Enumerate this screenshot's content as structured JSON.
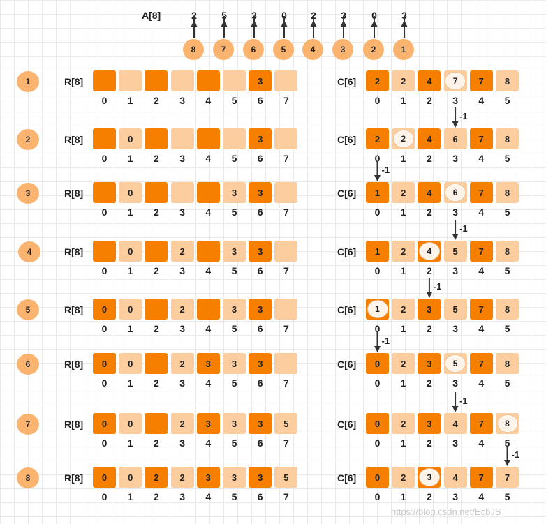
{
  "header": {
    "array_label": "A[8]",
    "array_values": [
      "2",
      "5",
      "3",
      "0",
      "2",
      "3",
      "0",
      "3"
    ],
    "order_labels": [
      "8",
      "7",
      "6",
      "5",
      "4",
      "3",
      "2",
      "1"
    ]
  },
  "r_indices": [
    "0",
    "1",
    "2",
    "3",
    "4",
    "5",
    "6",
    "7"
  ],
  "c_indices": [
    "0",
    "1",
    "2",
    "3",
    "4",
    "5"
  ],
  "steps": [
    {
      "num": "1",
      "r_label": "R[8]",
      "c_label": "C[6]",
      "r_cells": [
        {
          "t": "",
          "d": 1
        },
        {
          "t": "",
          "d": 0
        },
        {
          "t": "",
          "d": 1
        },
        {
          "t": "",
          "d": 0
        },
        {
          "t": "",
          "d": 1
        },
        {
          "t": "",
          "d": 0
        },
        {
          "t": "3",
          "d": 1
        },
        {
          "t": "",
          "d": 0
        }
      ],
      "c_cells": [
        {
          "t": "2",
          "d": 1
        },
        {
          "t": "2",
          "d": 0
        },
        {
          "t": "4",
          "d": 1
        },
        {
          "t": "7",
          "d": 0,
          "h": 1
        },
        {
          "t": "7",
          "d": 1
        },
        {
          "t": "8",
          "d": 0
        }
      ],
      "arrow_col": -1,
      "minus": "-1"
    },
    {
      "num": "2",
      "r_label": "R[8]",
      "c_label": "C[6]",
      "r_cells": [
        {
          "t": "",
          "d": 1
        },
        {
          "t": "0",
          "d": 0
        },
        {
          "t": "",
          "d": 1
        },
        {
          "t": "",
          "d": 0
        },
        {
          "t": "",
          "d": 1
        },
        {
          "t": "",
          "d": 0
        },
        {
          "t": "3",
          "d": 1
        },
        {
          "t": "",
          "d": 0
        }
      ],
      "c_cells": [
        {
          "t": "2",
          "d": 1
        },
        {
          "t": "2",
          "d": 0,
          "h": 1
        },
        {
          "t": "4",
          "d": 1
        },
        {
          "t": "6",
          "d": 0
        },
        {
          "t": "7",
          "d": 1
        },
        {
          "t": "8",
          "d": 0
        }
      ],
      "arrow_col": 3,
      "minus": "-1"
    },
    {
      "num": "3",
      "r_label": "R[8]",
      "c_label": "C[6]",
      "r_cells": [
        {
          "t": "",
          "d": 1
        },
        {
          "t": "0",
          "d": 0
        },
        {
          "t": "",
          "d": 1
        },
        {
          "t": "",
          "d": 0
        },
        {
          "t": "",
          "d": 1
        },
        {
          "t": "3",
          "d": 0
        },
        {
          "t": "3",
          "d": 1
        },
        {
          "t": "",
          "d": 0
        }
      ],
      "c_cells": [
        {
          "t": "1",
          "d": 1
        },
        {
          "t": "2",
          "d": 0
        },
        {
          "t": "4",
          "d": 1
        },
        {
          "t": "6",
          "d": 0,
          "h": 1
        },
        {
          "t": "7",
          "d": 1
        },
        {
          "t": "8",
          "d": 0
        }
      ],
      "arrow_col": 0,
      "minus": "-1"
    },
    {
      "num": "4",
      "r_label": "R[8]",
      "c_label": "C[6]",
      "r_cells": [
        {
          "t": "",
          "d": 1
        },
        {
          "t": "0",
          "d": 0
        },
        {
          "t": "",
          "d": 1
        },
        {
          "t": "2",
          "d": 0
        },
        {
          "t": "",
          "d": 1
        },
        {
          "t": "3",
          "d": 0
        },
        {
          "t": "3",
          "d": 1
        },
        {
          "t": "",
          "d": 0
        }
      ],
      "c_cells": [
        {
          "t": "1",
          "d": 1
        },
        {
          "t": "2",
          "d": 0
        },
        {
          "t": "4",
          "d": 1,
          "h": 1
        },
        {
          "t": "5",
          "d": 0
        },
        {
          "t": "7",
          "d": 1
        },
        {
          "t": "8",
          "d": 0
        }
      ],
      "arrow_col": 3,
      "minus": "-1"
    },
    {
      "num": "5",
      "r_label": "R[8]",
      "c_label": "C[6]",
      "r_cells": [
        {
          "t": "0",
          "d": 1
        },
        {
          "t": "0",
          "d": 0
        },
        {
          "t": "",
          "d": 1
        },
        {
          "t": "2",
          "d": 0
        },
        {
          "t": "",
          "d": 1
        },
        {
          "t": "3",
          "d": 0
        },
        {
          "t": "3",
          "d": 1
        },
        {
          "t": "",
          "d": 0
        }
      ],
      "c_cells": [
        {
          "t": "1",
          "d": 1,
          "h": 1
        },
        {
          "t": "2",
          "d": 0
        },
        {
          "t": "3",
          "d": 1
        },
        {
          "t": "5",
          "d": 0
        },
        {
          "t": "7",
          "d": 1
        },
        {
          "t": "8",
          "d": 0
        }
      ],
      "arrow_col": 2,
      "minus": "-1"
    },
    {
      "num": "6",
      "r_label": "R[8]",
      "c_label": "C[6]",
      "r_cells": [
        {
          "t": "0",
          "d": 1
        },
        {
          "t": "0",
          "d": 0
        },
        {
          "t": "",
          "d": 1
        },
        {
          "t": "2",
          "d": 0
        },
        {
          "t": "3",
          "d": 1
        },
        {
          "t": "3",
          "d": 0
        },
        {
          "t": "3",
          "d": 1
        },
        {
          "t": "",
          "d": 0
        }
      ],
      "c_cells": [
        {
          "t": "0",
          "d": 1
        },
        {
          "t": "2",
          "d": 0
        },
        {
          "t": "3",
          "d": 1
        },
        {
          "t": "5",
          "d": 0,
          "h": 1
        },
        {
          "t": "7",
          "d": 1
        },
        {
          "t": "8",
          "d": 0
        }
      ],
      "arrow_col": 0,
      "minus": "-1"
    },
    {
      "num": "7",
      "r_label": "R[8]",
      "c_label": "C[6]",
      "r_cells": [
        {
          "t": "0",
          "d": 1
        },
        {
          "t": "0",
          "d": 0
        },
        {
          "t": "",
          "d": 1
        },
        {
          "t": "2",
          "d": 0
        },
        {
          "t": "3",
          "d": 1
        },
        {
          "t": "3",
          "d": 0
        },
        {
          "t": "3",
          "d": 1
        },
        {
          "t": "5",
          "d": 0
        }
      ],
      "c_cells": [
        {
          "t": "0",
          "d": 1
        },
        {
          "t": "2",
          "d": 0
        },
        {
          "t": "3",
          "d": 1
        },
        {
          "t": "4",
          "d": 0
        },
        {
          "t": "7",
          "d": 1
        },
        {
          "t": "8",
          "d": 0,
          "h": 1
        }
      ],
      "arrow_col": 3,
      "minus": "-1"
    },
    {
      "num": "8",
      "r_label": "R[8]",
      "c_label": "C[6]",
      "r_cells": [
        {
          "t": "0",
          "d": 1
        },
        {
          "t": "0",
          "d": 0
        },
        {
          "t": "2",
          "d": 1
        },
        {
          "t": "2",
          "d": 0
        },
        {
          "t": "3",
          "d": 1
        },
        {
          "t": "3",
          "d": 0
        },
        {
          "t": "3",
          "d": 1
        },
        {
          "t": "5",
          "d": 0
        }
      ],
      "c_cells": [
        {
          "t": "0",
          "d": 1
        },
        {
          "t": "2",
          "d": 0
        },
        {
          "t": "3",
          "d": 1,
          "h": 1
        },
        {
          "t": "4",
          "d": 0
        },
        {
          "t": "7",
          "d": 1
        },
        {
          "t": "7",
          "d": 0
        }
      ],
      "arrow_col": 5,
      "minus": "-1"
    }
  ],
  "watermark": "https://blog.csdn.net/EcbJS",
  "colors": {
    "dark": "#f77f00",
    "light": "#fbcd9f",
    "circle": "#fbb470"
  }
}
